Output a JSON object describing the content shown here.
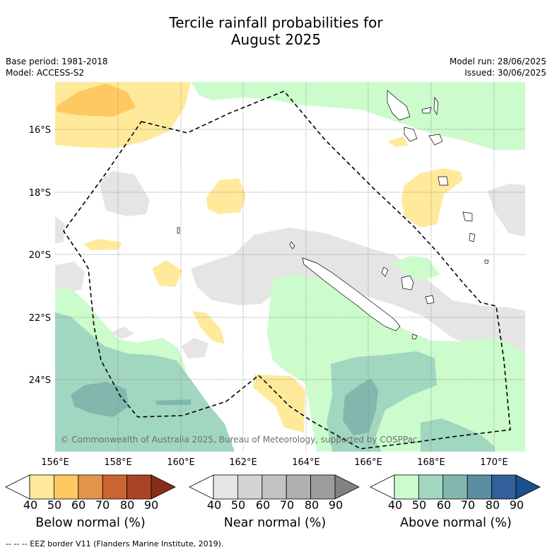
{
  "title_line1": "Tercile rainfall probabilities for",
  "title_line2": "August 2025",
  "base_period": "Base period: 1981-2018",
  "model": "Model: ACCESS-S2",
  "model_run": "Model run: 28/06/2025",
  "issued": "Issued: 30/06/2025",
  "copyright": "© Commonwealth of Australia 2025, Bureau of Meteorology, supported by COSPPac",
  "lat_labels": [
    "16°S",
    "18°S",
    "20°S",
    "22°S",
    "24°S"
  ],
  "lon_labels": [
    "156°E",
    "158°E",
    "160°E",
    "162°E",
    "164°E",
    "166°E",
    "168°E",
    "170°E"
  ],
  "colorbars": [
    {
      "title": "Below normal (%)",
      "ticks": [
        "40",
        "50",
        "60",
        "70",
        "80",
        "90"
      ],
      "colors": [
        "#ffffff",
        "#ffe99b",
        "#fec963",
        "#e3944b",
        "#cc6432",
        "#a94425",
        "#8a2b17"
      ]
    },
    {
      "title": "Near normal (%)",
      "ticks": [
        "40",
        "50",
        "60",
        "70",
        "80",
        "90"
      ],
      "colors": [
        "#ffffff",
        "#e5e5e5",
        "#d4d4d4",
        "#c3c3c3",
        "#b0b0b0",
        "#9d9d9d",
        "#828282"
      ]
    },
    {
      "title": "Above normal (%)",
      "ticks": [
        "40",
        "50",
        "60",
        "70",
        "80",
        "90"
      ],
      "colors": [
        "#ffffff",
        "#ccfbcc",
        "#a1d6c0",
        "#82b7ad",
        "#5b8fa0",
        "#31609a",
        "#1b4f8d"
      ]
    }
  ],
  "footer": "--  --  -- EEZ border V11 (Flanders Marine Institute, 2019)."
}
